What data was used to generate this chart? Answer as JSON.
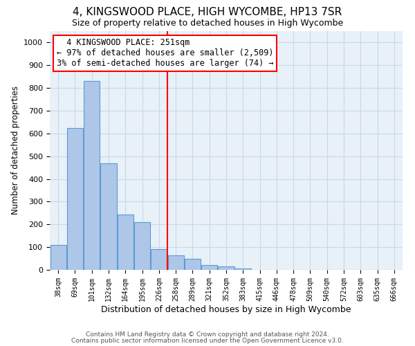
{
  "title": "4, KINGSWOOD PLACE, HIGH WYCOMBE, HP13 7SR",
  "subtitle": "Size of property relative to detached houses in High Wycombe",
  "xlabel": "Distribution of detached houses by size in High Wycombe",
  "ylabel": "Number of detached properties",
  "footer1": "Contains HM Land Registry data © Crown copyright and database right 2024.",
  "footer2": "Contains public sector information licensed under the Open Government Licence v3.0.",
  "bin_labels": [
    "38sqm",
    "69sqm",
    "101sqm",
    "132sqm",
    "164sqm",
    "195sqm",
    "226sqm",
    "258sqm",
    "289sqm",
    "321sqm",
    "352sqm",
    "383sqm",
    "415sqm",
    "446sqm",
    "478sqm",
    "509sqm",
    "540sqm",
    "572sqm",
    "603sqm",
    "635sqm",
    "666sqm"
  ],
  "bar_values": [
    110,
    625,
    830,
    470,
    245,
    210,
    90,
    65,
    50,
    20,
    15,
    5,
    0,
    0,
    0,
    0,
    0,
    0,
    0,
    0,
    0
  ],
  "bar_color": "#aec6e8",
  "bar_edgecolor": "#5b9bd5",
  "red_line_x": 6.5,
  "annotation_text": "  4 KINGSWOOD PLACE: 251sqm  \n← 97% of detached houses are smaller (2,509)\n3% of semi-detached houses are larger (74) →",
  "annotation_box_color": "white",
  "annotation_box_edgecolor": "red",
  "annotation_fontsize": 8.5,
  "ylim": [
    0,
    1050
  ],
  "yticks": [
    0,
    100,
    200,
    300,
    400,
    500,
    600,
    700,
    800,
    900,
    1000
  ],
  "grid_color": "#c8d8e8",
  "bg_color": "#e8f0f8",
  "title_fontsize": 11,
  "subtitle_fontsize": 9,
  "xlabel_fontsize": 9,
  "ylabel_fontsize": 8.5
}
